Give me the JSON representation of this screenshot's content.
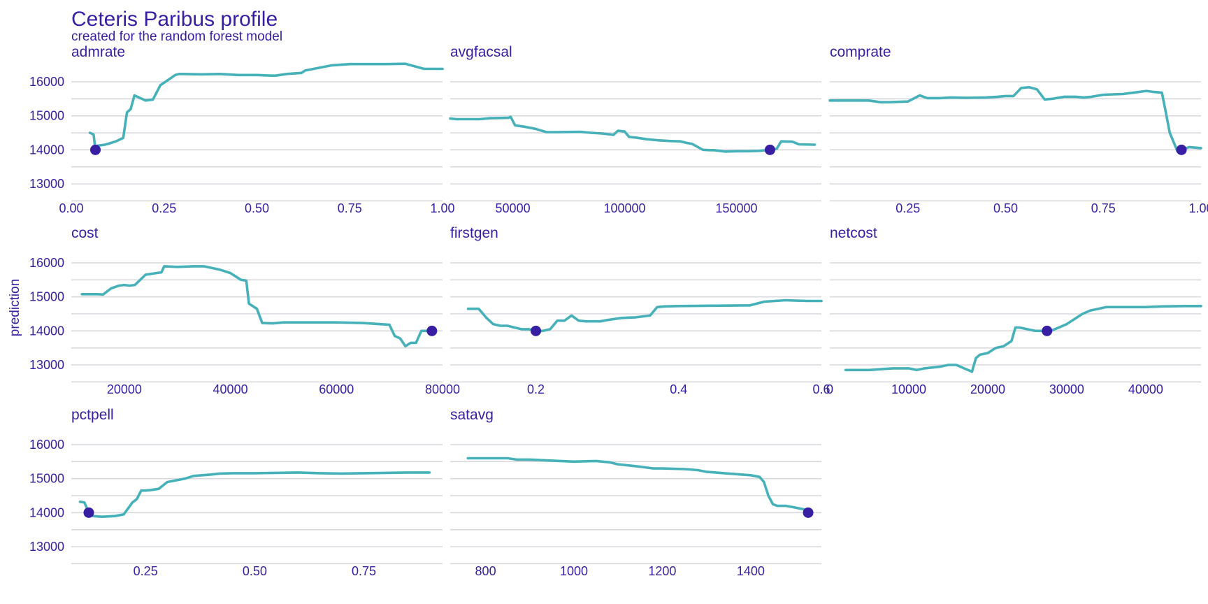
{
  "colors": {
    "text": "#371ea3",
    "line": "#46b1b8",
    "point": "#371ea3",
    "grid": "#d9d9dd"
  },
  "chart_data": {
    "type": "line",
    "title": "Ceteris Paribus profile",
    "subtitle": "created for the random forest model",
    "ylabel": "prediction",
    "ylim": [
      12500,
      16600
    ],
    "yticks": [
      13000,
      14000,
      15000,
      16000
    ],
    "observation_prediction": 14000,
    "panels": [
      {
        "variable": "admrate",
        "xlim": [
          0,
          1.0
        ],
        "xticks": [
          0,
          0.25,
          0.5,
          0.75,
          1.0
        ],
        "xtick_labels": [
          "0.00",
          "0.25",
          "0.50",
          "0.75",
          "1.00"
        ],
        "observation_x": 0.065,
        "x": [
          0.05,
          0.06,
          0.065,
          0.07,
          0.09,
          0.1,
          0.12,
          0.14,
          0.15,
          0.16,
          0.17,
          0.18,
          0.2,
          0.22,
          0.24,
          0.26,
          0.28,
          0.29,
          0.3,
          0.35,
          0.4,
          0.45,
          0.5,
          0.54,
          0.55,
          0.58,
          0.62,
          0.63,
          0.7,
          0.75,
          0.8,
          0.85,
          0.9,
          0.92,
          0.95,
          0.98,
          1.0
        ],
        "y": [
          14500,
          14450,
          14000,
          14120,
          14150,
          14180,
          14250,
          14350,
          15100,
          15200,
          15600,
          15550,
          15450,
          15480,
          15900,
          16050,
          16200,
          16230,
          16230,
          16220,
          16230,
          16200,
          16200,
          16180,
          16180,
          16230,
          16260,
          16330,
          16480,
          16520,
          16520,
          16520,
          16530,
          16470,
          16380,
          16380,
          16380
        ]
      },
      {
        "variable": "avgfacsal",
        "xlim": [
          22000,
          188000
        ],
        "xticks": [
          50000,
          100000,
          150000
        ],
        "xtick_labels": [
          "50000",
          "100000",
          "150000"
        ],
        "observation_x": 165000,
        "x": [
          22000,
          25000,
          35000,
          40000,
          48000,
          49000,
          51000,
          55000,
          60000,
          65000,
          70000,
          80000,
          85000,
          90000,
          95000,
          97000,
          100000,
          102000,
          105000,
          110000,
          115000,
          120000,
          125000,
          128000,
          130000,
          135000,
          138000,
          140000,
          145000,
          150000,
          155000,
          160000,
          165000,
          168000,
          170000,
          175000,
          178000,
          185000
        ],
        "y": [
          14920,
          14900,
          14900,
          14930,
          14940,
          14970,
          14720,
          14680,
          14620,
          14520,
          14520,
          14530,
          14500,
          14480,
          14440,
          14560,
          14540,
          14380,
          14360,
          14310,
          14280,
          14260,
          14250,
          14200,
          14180,
          14000,
          13990,
          13990,
          13950,
          13960,
          13960,
          13970,
          14000,
          14030,
          14250,
          14240,
          14160,
          14150
        ]
      },
      {
        "variable": "comprate",
        "xlim": [
          0.05,
          1.0
        ],
        "xticks": [
          0.25,
          0.5,
          0.75,
          1.0
        ],
        "xtick_labels": [
          "0.25",
          "0.50",
          "0.75",
          "1.00"
        ],
        "observation_x": 0.95,
        "x": [
          0.05,
          0.1,
          0.15,
          0.18,
          0.2,
          0.25,
          0.28,
          0.3,
          0.33,
          0.36,
          0.4,
          0.45,
          0.48,
          0.5,
          0.52,
          0.54,
          0.56,
          0.58,
          0.6,
          0.62,
          0.65,
          0.68,
          0.7,
          0.72,
          0.75,
          0.8,
          0.84,
          0.86,
          0.88,
          0.9,
          0.91,
          0.92,
          0.94,
          0.95,
          0.97,
          1.0
        ],
        "y": [
          15450,
          15450,
          15450,
          15400,
          15400,
          15420,
          15600,
          15520,
          15520,
          15540,
          15530,
          15540,
          15560,
          15580,
          15580,
          15820,
          15840,
          15780,
          15480,
          15500,
          15560,
          15560,
          15540,
          15560,
          15620,
          15640,
          15700,
          15730,
          15700,
          15680,
          15100,
          14500,
          13950,
          14000,
          14080,
          14050
        ]
      },
      {
        "variable": "cost",
        "xlim": [
          10000,
          80000
        ],
        "xticks": [
          20000,
          40000,
          60000,
          80000
        ],
        "xtick_labels": [
          "20000",
          "40000",
          "60000",
          "80000"
        ],
        "observation_x": 78000,
        "x": [
          12000,
          15000,
          16000,
          17500,
          19000,
          20000,
          21000,
          22000,
          24000,
          26000,
          27000,
          27500,
          30000,
          33000,
          35000,
          38000,
          40000,
          42000,
          43000,
          43500,
          45000,
          46000,
          48000,
          50000,
          51000,
          55000,
          60000,
          65000,
          68000,
          70000,
          71000,
          72000,
          73000,
          74000,
          75000,
          76000,
          77000,
          78000
        ],
        "y": [
          15080,
          15080,
          15070,
          15250,
          15330,
          15350,
          15330,
          15350,
          15650,
          15700,
          15720,
          15900,
          15880,
          15900,
          15900,
          15800,
          15700,
          15500,
          15480,
          14800,
          14650,
          14230,
          14220,
          14250,
          14250,
          14250,
          14250,
          14230,
          14200,
          14180,
          13850,
          13780,
          13550,
          13650,
          13650,
          14000,
          14000,
          14000
        ]
      },
      {
        "variable": "firstgen",
        "xlim": [
          0.08,
          0.6
        ],
        "xticks": [
          0.2,
          0.4,
          0.6
        ],
        "xtick_labels": [
          "0.2",
          "0.4",
          "0.6"
        ],
        "observation_x": 0.2,
        "x": [
          0.105,
          0.12,
          0.13,
          0.14,
          0.15,
          0.16,
          0.17,
          0.18,
          0.19,
          0.2,
          0.21,
          0.22,
          0.23,
          0.24,
          0.25,
          0.26,
          0.27,
          0.29,
          0.3,
          0.32,
          0.34,
          0.36,
          0.37,
          0.38,
          0.4,
          0.45,
          0.5,
          0.52,
          0.55,
          0.58,
          0.6
        ],
        "y": [
          14650,
          14650,
          14400,
          14200,
          14150,
          14150,
          14100,
          14050,
          14050,
          14000,
          14000,
          14050,
          14300,
          14300,
          14450,
          14300,
          14280,
          14280,
          14320,
          14380,
          14400,
          14450,
          14700,
          14720,
          14730,
          14740,
          14750,
          14860,
          14900,
          14880,
          14880
        ]
      },
      {
        "variable": "netcost",
        "xlim": [
          0,
          47000
        ],
        "xticks": [
          0,
          10000,
          20000,
          30000,
          40000
        ],
        "xtick_labels": [
          "0",
          "10000",
          "20000",
          "30000",
          "40000"
        ],
        "observation_x": 27500,
        "x": [
          2000,
          5000,
          8000,
          10000,
          11000,
          12000,
          14000,
          15000,
          16000,
          17000,
          18000,
          18500,
          19000,
          20000,
          21000,
          22000,
          23000,
          23500,
          24000,
          25000,
          26000,
          27500,
          28000,
          29000,
          30000,
          31000,
          32000,
          33000,
          34000,
          35000,
          38000,
          40000,
          42000,
          45000,
          47000
        ],
        "y": [
          12850,
          12850,
          12900,
          12900,
          12850,
          12900,
          12950,
          13000,
          13000,
          12900,
          12800,
          13200,
          13300,
          13350,
          13500,
          13550,
          13700,
          14100,
          14100,
          14050,
          14000,
          14000,
          14000,
          14100,
          14200,
          14350,
          14500,
          14600,
          14650,
          14700,
          14700,
          14700,
          14720,
          14730,
          14730
        ]
      },
      {
        "variable": "pctpell",
        "xlim": [
          0.08,
          0.93
        ],
        "xticks": [
          0.25,
          0.5,
          0.75
        ],
        "xtick_labels": [
          "0.25",
          "0.50",
          "0.75"
        ],
        "observation_x": 0.12,
        "x": [
          0.1,
          0.11,
          0.12,
          0.13,
          0.15,
          0.18,
          0.2,
          0.22,
          0.23,
          0.24,
          0.25,
          0.26,
          0.28,
          0.3,
          0.32,
          0.34,
          0.36,
          0.38,
          0.4,
          0.42,
          0.45,
          0.5,
          0.55,
          0.6,
          0.65,
          0.7,
          0.75,
          0.8,
          0.85,
          0.9
        ],
        "y": [
          14320,
          14300,
          14000,
          13900,
          13880,
          13900,
          13950,
          14300,
          14400,
          14650,
          14650,
          14660,
          14700,
          14900,
          14950,
          15000,
          15080,
          15100,
          15120,
          15150,
          15160,
          15160,
          15170,
          15180,
          15160,
          15150,
          15160,
          15170,
          15180,
          15180
        ]
      },
      {
        "variable": "satavg",
        "xlim": [
          720,
          1560
        ],
        "xticks": [
          800,
          1000,
          1200,
          1400
        ],
        "xtick_labels": [
          "800",
          "1000",
          "1200",
          "1400"
        ],
        "observation_x": 1530,
        "x": [
          760,
          800,
          850,
          870,
          900,
          950,
          1000,
          1050,
          1080,
          1100,
          1150,
          1180,
          1200,
          1250,
          1280,
          1300,
          1350,
          1400,
          1420,
          1430,
          1440,
          1450,
          1460,
          1480,
          1500,
          1520,
          1530
        ],
        "y": [
          15600,
          15600,
          15600,
          15560,
          15560,
          15530,
          15500,
          15520,
          15480,
          15420,
          15350,
          15300,
          15300,
          15280,
          15250,
          15200,
          15150,
          15100,
          15050,
          14900,
          14500,
          14250,
          14200,
          14200,
          14150,
          14100,
          14000
        ]
      }
    ]
  }
}
